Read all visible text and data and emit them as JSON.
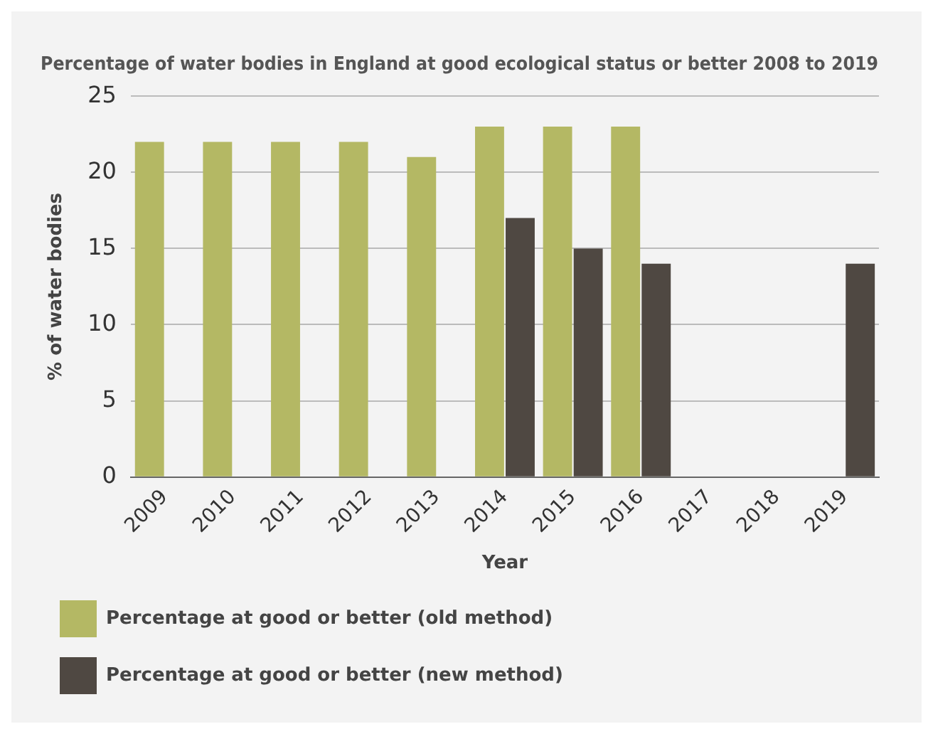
{
  "chart_data": {
    "type": "bar",
    "title": "Percentage of water bodies in England at good ecological status or better 2008 to 2019",
    "xlabel": "Year",
    "ylabel": "% of water bodies",
    "categories": [
      "2009",
      "2010",
      "2011",
      "2012",
      "2013",
      "2014",
      "2015",
      "2016",
      "2017",
      "2018",
      "2019"
    ],
    "series": [
      {
        "name": "Percentage at good or better (old method)",
        "color": "#b4b864",
        "values": [
          22,
          22,
          22,
          22,
          21,
          23,
          23,
          23,
          null,
          null,
          null
        ]
      },
      {
        "name": "Percentage at good or better (new method)",
        "color": "#4f4842",
        "values": [
          null,
          null,
          null,
          null,
          null,
          17,
          15,
          14,
          null,
          null,
          14
        ]
      }
    ],
    "ylim": [
      0,
      25
    ],
    "yticks": [
      0,
      5,
      10,
      15,
      20,
      25
    ],
    "grid": "y",
    "legend": "bottom"
  }
}
